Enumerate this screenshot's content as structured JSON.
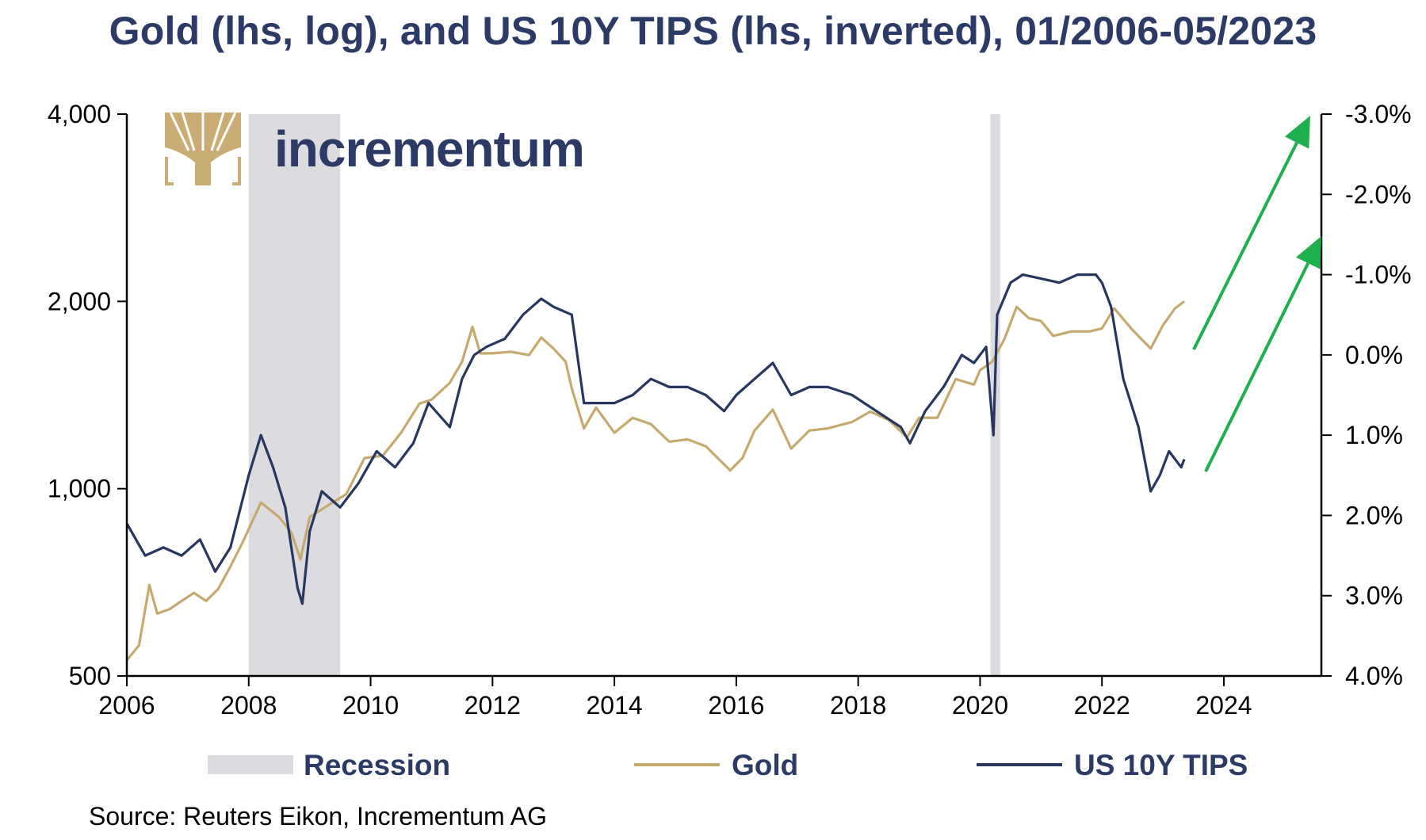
{
  "title": "Gold (lhs, log), and US 10Y TIPS (lhs, inverted), 01/2006-05/2023",
  "source": "Source: Reuters Eikon, Incrementum AG",
  "logo": {
    "text": "incrementum",
    "icon": "tree-icon",
    "color": "#c9ad74"
  },
  "colors": {
    "gold": "#c6a96f",
    "tips": "#27375f",
    "recession": "#dcdbe0",
    "arrow": "#1faf4e",
    "text": "#2b3b66"
  },
  "chart_data": {
    "type": "line",
    "title": "Gold (lhs, log), and US 10Y TIPS (lhs, inverted), 01/2006-05/2023",
    "x_axis": {
      "min": 2006,
      "max": 2025.6,
      "ticks": [
        "2006",
        "2008",
        "2010",
        "2012",
        "2014",
        "2016",
        "2018",
        "2020",
        "2022",
        "2024"
      ]
    },
    "y_left": {
      "scale": "log",
      "min": 500,
      "max": 4000,
      "ticks": [
        "500",
        "1,000",
        "2,000",
        "4,000"
      ]
    },
    "y_right": {
      "inverted": true,
      "min": -3.0,
      "max": 4.0,
      "ticks": [
        "-3.0%",
        "-2.0%",
        "-1.0%",
        "0.0%",
        "1.0%",
        "2.0%",
        "3.0%",
        "4.0%"
      ]
    },
    "legend": {
      "placement": "bottom",
      "entries": [
        "Recession",
        "Gold",
        "US 10Y TIPS"
      ]
    },
    "recessions": [
      {
        "start": 2008.0,
        "end": 2009.5
      },
      {
        "start": 2020.17,
        "end": 2020.33
      }
    ],
    "series": [
      {
        "name": "Gold",
        "axis": "left",
        "x": [
          2006.0,
          2006.2,
          2006.37,
          2006.5,
          2006.7,
          2006.9,
          2007.1,
          2007.3,
          2007.5,
          2007.7,
          2007.9,
          2008.2,
          2008.5,
          2008.7,
          2008.85,
          2009.0,
          2009.3,
          2009.6,
          2009.9,
          2010.2,
          2010.5,
          2010.8,
          2011.0,
          2011.3,
          2011.5,
          2011.67,
          2011.8,
          2012.0,
          2012.3,
          2012.6,
          2012.8,
          2013.0,
          2013.2,
          2013.3,
          2013.5,
          2013.7,
          2014.0,
          2014.3,
          2014.6,
          2014.9,
          2015.2,
          2015.5,
          2015.9,
          2016.1,
          2016.3,
          2016.6,
          2016.9,
          2017.2,
          2017.5,
          2017.9,
          2018.2,
          2018.5,
          2018.8,
          2019.0,
          2019.3,
          2019.6,
          2019.9,
          2020.0,
          2020.2,
          2020.4,
          2020.6,
          2020.8,
          2021.0,
          2021.2,
          2021.5,
          2021.8,
          2022.0,
          2022.2,
          2022.5,
          2022.8,
          2023.0,
          2023.2,
          2023.35
        ],
        "y": [
          530,
          560,
          700,
          630,
          640,
          660,
          680,
          660,
          690,
          750,
          820,
          950,
          900,
          850,
          770,
          900,
          940,
          980,
          1120,
          1130,
          1230,
          1370,
          1390,
          1480,
          1600,
          1820,
          1650,
          1650,
          1660,
          1640,
          1750,
          1680,
          1600,
          1450,
          1250,
          1350,
          1230,
          1300,
          1270,
          1190,
          1200,
          1170,
          1070,
          1120,
          1240,
          1340,
          1160,
          1240,
          1250,
          1280,
          1330,
          1290,
          1210,
          1300,
          1300,
          1500,
          1470,
          1550,
          1600,
          1740,
          1960,
          1880,
          1860,
          1760,
          1790,
          1790,
          1810,
          1950,
          1800,
          1680,
          1830,
          1950,
          2000
        ]
      },
      {
        "name": "US 10Y TIPS",
        "axis": "right",
        "x": [
          2006.0,
          2006.3,
          2006.6,
          2006.9,
          2007.2,
          2007.45,
          2007.7,
          2008.0,
          2008.2,
          2008.4,
          2008.6,
          2008.8,
          2008.88,
          2009.0,
          2009.2,
          2009.5,
          2009.8,
          2010.1,
          2010.4,
          2010.7,
          2010.95,
          2011.3,
          2011.5,
          2011.7,
          2011.9,
          2012.2,
          2012.5,
          2012.8,
          2013.0,
          2013.3,
          2013.5,
          2013.7,
          2014.0,
          2014.3,
          2014.6,
          2014.9,
          2015.2,
          2015.5,
          2015.8,
          2016.0,
          2016.3,
          2016.6,
          2016.9,
          2017.2,
          2017.5,
          2017.9,
          2018.3,
          2018.7,
          2018.85,
          2019.1,
          2019.4,
          2019.7,
          2019.9,
          2020.1,
          2020.22,
          2020.28,
          2020.5,
          2020.7,
          2021.0,
          2021.3,
          2021.6,
          2021.9,
          2022.0,
          2022.15,
          2022.35,
          2022.6,
          2022.8,
          2022.95,
          2023.1,
          2023.3,
          2023.35
        ],
        "y": [
          2.1,
          2.5,
          2.4,
          2.5,
          2.3,
          2.7,
          2.4,
          1.5,
          1.0,
          1.4,
          1.9,
          2.9,
          3.1,
          2.2,
          1.7,
          1.9,
          1.6,
          1.2,
          1.4,
          1.1,
          0.6,
          0.9,
          0.3,
          0.0,
          -0.1,
          -0.2,
          -0.5,
          -0.7,
          -0.6,
          -0.5,
          0.6,
          0.6,
          0.6,
          0.5,
          0.3,
          0.4,
          0.4,
          0.5,
          0.7,
          0.5,
          0.3,
          0.1,
          0.5,
          0.4,
          0.4,
          0.5,
          0.7,
          0.9,
          1.1,
          0.7,
          0.4,
          0.0,
          0.1,
          -0.1,
          1.0,
          -0.5,
          -0.9,
          -1.0,
          -0.95,
          -0.9,
          -1.0,
          -1.0,
          -0.9,
          -0.6,
          0.3,
          0.9,
          1.7,
          1.5,
          1.2,
          1.4,
          1.3
        ]
      }
    ]
  }
}
